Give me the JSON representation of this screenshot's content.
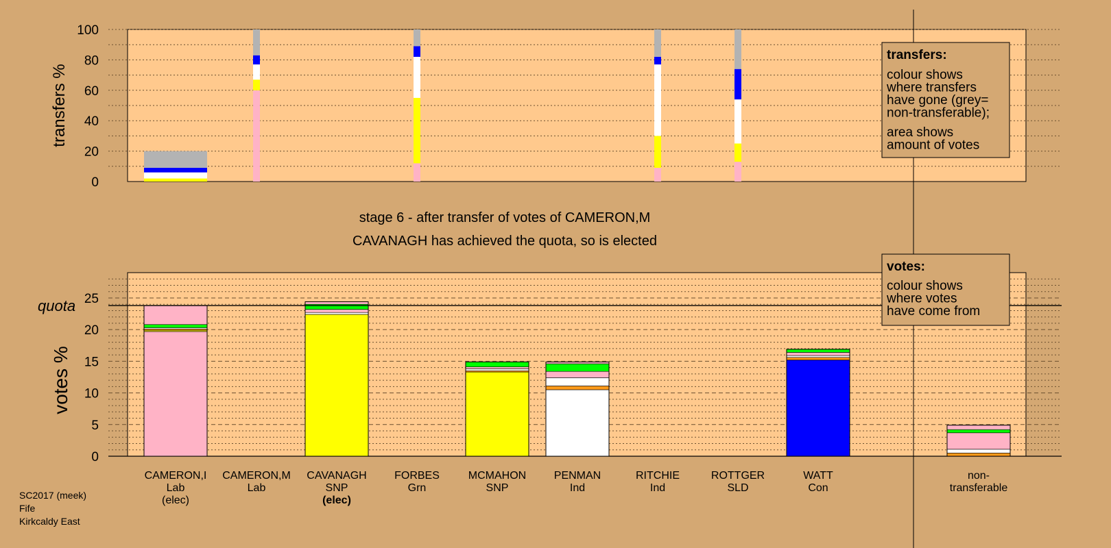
{
  "stage_title": "stage 6 - after transfer of votes of CAMERON,M",
  "stage_subtitle": "CAVANAGH has achieved the quota, so is elected",
  "footer": [
    "SC2017 (meek)",
    "Fife",
    "Kirkcaldy East"
  ],
  "transfers_legend": {
    "title": "transfers:",
    "lines": [
      "colour shows",
      "where transfers",
      "have gone (grey=",
      "non-transferable);"
    ],
    "lines2": [
      "area shows",
      "amount of votes"
    ]
  },
  "votes_legend": {
    "title": "votes:",
    "lines": [
      "colour shows",
      "where votes",
      "have come from"
    ]
  },
  "party_colors": {
    "Lab": "#ffb3c6",
    "SNP": "#ffff00",
    "Grn": "#00ff00",
    "Ind": "#ffffff",
    "SLD": "#ff9a1a",
    "Con": "#0000ff",
    "nontransferable": "#b3b3b3"
  },
  "chart_data": [
    {
      "type": "bar",
      "ylabel": "transfers %",
      "ylim": [
        0,
        100
      ],
      "yticks": [
        0,
        20,
        40,
        60,
        80,
        100
      ],
      "grid": true,
      "categories": [
        "CAMERON,I",
        "CAMERON,M",
        "CAVANAGH",
        "FORBES",
        "MCMAHON",
        "PENMAN",
        "RITCHIE",
        "ROTTGER",
        "WATT",
        "non-transferable"
      ],
      "bars": [
        {
          "candidate": "CAMERON,I",
          "segments": [
            {
              "to": "SNP",
              "value": 2
            },
            {
              "to": "Ind",
              "value": 4
            },
            {
              "to": "Con",
              "value": 3
            },
            {
              "to": "nontransferable",
              "value": 11
            }
          ]
        },
        {
          "candidate": "CAMERON,M",
          "segments": [
            {
              "to": "Lab",
              "value": 60
            },
            {
              "to": "SNP",
              "value": 7
            },
            {
              "to": "Ind",
              "value": 10
            },
            {
              "to": "Con",
              "value": 6
            },
            {
              "to": "nontransferable",
              "value": 17
            }
          ]
        },
        {
          "candidate": "FORBES",
          "segments": [
            {
              "to": "Lab",
              "value": 12
            },
            {
              "to": "SNP",
              "value": 43
            },
            {
              "to": "Ind",
              "value": 27
            },
            {
              "to": "Con",
              "value": 7
            },
            {
              "to": "nontransferable",
              "value": 11
            }
          ]
        },
        {
          "candidate": "RITCHIE",
          "segments": [
            {
              "to": "Lab",
              "value": 9
            },
            {
              "to": "SNP",
              "value": 21
            },
            {
              "to": "Ind",
              "value": 47
            },
            {
              "to": "Con",
              "value": 5
            },
            {
              "to": "nontransferable",
              "value": 18
            }
          ]
        },
        {
          "candidate": "ROTTGER",
          "segments": [
            {
              "to": "Lab",
              "value": 13
            },
            {
              "to": "SNP",
              "value": 12
            },
            {
              "to": "Ind",
              "value": 29
            },
            {
              "to": "Con",
              "value": 20
            },
            {
              "to": "nontransferable",
              "value": 26
            }
          ]
        }
      ]
    },
    {
      "type": "bar",
      "ylabel": "votes %",
      "ylim": [
        0,
        29
      ],
      "yticks": [
        0,
        5,
        10,
        15,
        20,
        25
      ],
      "quota": 23.8,
      "quota_label": "quota",
      "grid": true,
      "candidates": [
        {
          "name": "CAMERON,I",
          "party": "Lab",
          "status": "(elec)",
          "status_bold": false,
          "segments": [
            {
              "from": "Lab",
              "value": 19.7
            },
            {
              "from": "SNP",
              "value": 0.2
            },
            {
              "from": "SLD",
              "value": 0.2
            },
            {
              "from": "Ind",
              "value": 0.2
            },
            {
              "from": "Grn",
              "value": 0.5
            },
            {
              "from": "Lab",
              "value": 3.0
            }
          ]
        },
        {
          "name": "CAMERON,M",
          "party": "Lab",
          "status": "",
          "status_bold": false,
          "segments": []
        },
        {
          "name": "CAVANAGH",
          "party": "SNP",
          "status": "(elec)",
          "status_bold": true,
          "segments": [
            {
              "from": "SNP",
              "value": 22.4
            },
            {
              "from": "Ind",
              "value": 0.3
            },
            {
              "from": "Lab",
              "value": 0.5
            },
            {
              "from": "Grn",
              "value": 0.8
            },
            {
              "from": "Lab",
              "value": 0.4
            }
          ]
        },
        {
          "name": "FORBES",
          "party": "Grn",
          "status": "",
          "status_bold": false,
          "segments": []
        },
        {
          "name": "MCMAHON",
          "party": "SNP",
          "status": "",
          "status_bold": false,
          "segments": [
            {
              "from": "SNP",
              "value": 13.3
            },
            {
              "from": "SLD",
              "value": 0.2
            },
            {
              "from": "Ind",
              "value": 0.3
            },
            {
              "from": "Lab",
              "value": 0.3
            },
            {
              "from": "Grn",
              "value": 0.8
            }
          ]
        },
        {
          "name": "PENMAN",
          "party": "Ind",
          "status": "",
          "status_bold": false,
          "segments": [
            {
              "from": "Ind",
              "value": 10.5
            },
            {
              "from": "SLD",
              "value": 0.6
            },
            {
              "from": "Ind",
              "value": 1.3
            },
            {
              "from": "Lab",
              "value": 1.0
            },
            {
              "from": "Grn",
              "value": 1.2
            },
            {
              "from": "Lab",
              "value": 0.3
            }
          ]
        },
        {
          "name": "RITCHIE",
          "party": "Ind",
          "status": "",
          "status_bold": false,
          "segments": []
        },
        {
          "name": "ROTTGER",
          "party": "SLD",
          "status": "",
          "status_bold": false,
          "segments": []
        },
        {
          "name": "WATT",
          "party": "Con",
          "status": "",
          "status_bold": false,
          "segments": [
            {
              "from": "Con",
              "value": 15.2
            },
            {
              "from": "SLD",
              "value": 0.4
            },
            {
              "from": "Ind",
              "value": 0.3
            },
            {
              "from": "Lab",
              "value": 0.5
            },
            {
              "from": "Grn",
              "value": 0.5
            }
          ]
        },
        {
          "name": "non-",
          "party": "transferable",
          "status": "",
          "status_bold": false,
          "segments": [
            {
              "from": "SLD",
              "value": 0.5
            },
            {
              "from": "Ind",
              "value": 0.6
            },
            {
              "from": "Lab",
              "value": 2.6
            },
            {
              "from": "Grn",
              "value": 0.5
            },
            {
              "from": "Lab",
              "value": 0.7
            }
          ]
        }
      ]
    }
  ]
}
